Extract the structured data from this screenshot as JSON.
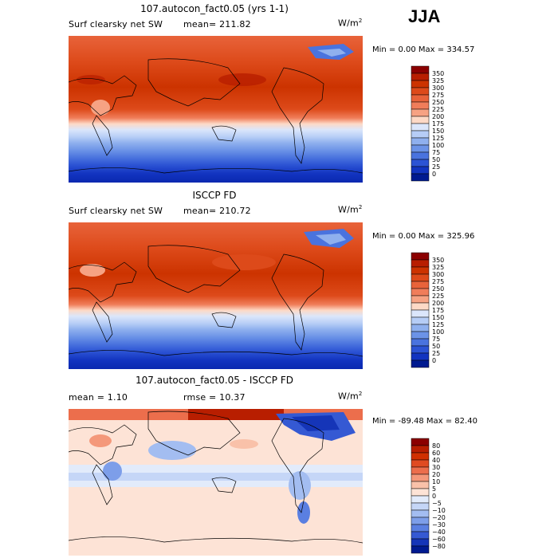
{
  "season": "JJA",
  "panels": [
    {
      "id": "model",
      "title": "107.autocon_fact0.05 (yrs 1-1)",
      "field_label": "Surf clearsky net SW",
      "stat_text": "mean= 211.82",
      "units_base": "W/m",
      "units_exp": "2",
      "minmax_text": "Min =    0.00 Max = 334.57",
      "legend_levels": [
        "350",
        "325",
        "300",
        "275",
        "250",
        "225",
        "200",
        "175",
        "150",
        "125",
        "100",
        "75",
        "50",
        "25",
        "0"
      ],
      "legend_colors": [
        "#8b0000",
        "#b81e00",
        "#cc3300",
        "#dd4a1a",
        "#e8633a",
        "#f07d5a",
        "#f6a283",
        "#fdd9c6",
        "#dbe6fb",
        "#b6cdf6",
        "#8fb0ee",
        "#6c93e7",
        "#4a73de",
        "#2c53d4",
        "#1234c0",
        "#001a90"
      ]
    },
    {
      "id": "obs",
      "title": "ISCCP FD",
      "field_label": "Surf clearsky net SW",
      "stat_text": "mean= 210.72",
      "units_base": "W/m",
      "units_exp": "2",
      "minmax_text": "Min =    0.00 Max = 325.96",
      "legend_levels": [
        "350",
        "325",
        "300",
        "275",
        "250",
        "225",
        "200",
        "175",
        "150",
        "125",
        "100",
        "75",
        "50",
        "25",
        "0"
      ],
      "legend_colors": [
        "#8b0000",
        "#b81e00",
        "#cc3300",
        "#dd4a1a",
        "#e8633a",
        "#f07d5a",
        "#f6a283",
        "#fdd9c6",
        "#dbe6fb",
        "#b6cdf6",
        "#8fb0ee",
        "#6c93e7",
        "#4a73de",
        "#2c53d4",
        "#1234c0",
        "#001a90"
      ]
    },
    {
      "id": "diff",
      "title": "107.autocon_fact0.05 - ISCCP FD",
      "field_label": "mean =    1.10",
      "stat_text": "rmse =  10.37",
      "units_base": "W/m",
      "units_exp": "2",
      "minmax_text": "Min = -89.48 Max =  82.40",
      "legend_levels": [
        "80",
        "60",
        "40",
        "30",
        "20",
        "10",
        "5",
        "0",
        "−5",
        "−10",
        "−20",
        "−30",
        "−40",
        "−60",
        "−80"
      ],
      "legend_colors": [
        "#8b0000",
        "#b81e00",
        "#d03000",
        "#e04b22",
        "#ec6e4c",
        "#f4987a",
        "#f9c1a9",
        "#fde3d6",
        "#e2ebfb",
        "#c5d6f7",
        "#a3bdf1",
        "#7d9ee9",
        "#5a7fe1",
        "#3559d3",
        "#1535b8",
        "#001a90"
      ]
    }
  ],
  "chart_data": {
    "type": "heatmap",
    "title": "JJA",
    "maps": [
      {
        "name": "107.autocon_fact0.05 (yrs 1-1)",
        "variable": "Surf clearsky net SW",
        "units": "W/m2",
        "mean": 211.82,
        "min": 0.0,
        "max": 334.57,
        "contour_levels": [
          0,
          25,
          50,
          75,
          100,
          125,
          150,
          175,
          200,
          225,
          250,
          275,
          300,
          325,
          350
        ]
      },
      {
        "name": "ISCCP FD",
        "variable": "Surf clearsky net SW",
        "units": "W/m2",
        "mean": 210.72,
        "min": 0.0,
        "max": 325.96,
        "contour_levels": [
          0,
          25,
          50,
          75,
          100,
          125,
          150,
          175,
          200,
          225,
          250,
          275,
          300,
          325,
          350
        ]
      },
      {
        "name": "107.autocon_fact0.05 - ISCCP FD",
        "units": "W/m2",
        "mean": 1.1,
        "rmse": 10.37,
        "min": -89.48,
        "max": 82.4,
        "contour_levels": [
          -80,
          -60,
          -40,
          -30,
          -20,
          -10,
          -5,
          0,
          5,
          10,
          20,
          30,
          40,
          60,
          80
        ]
      }
    ]
  }
}
